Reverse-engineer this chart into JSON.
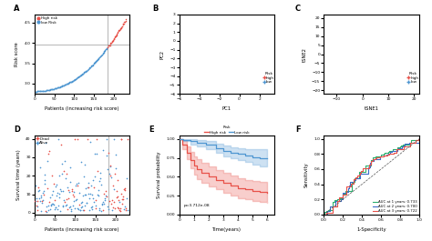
{
  "colors": {
    "high": "#E8524A",
    "low": "#4E96D1",
    "green": "#2AAF6E",
    "blue_roc": "#3B6BC9",
    "red_roc": "#E8524A"
  },
  "panelA": {
    "n_total": 230,
    "cutoff": 183,
    "risk_min": 2.8,
    "risk_max": 4.6,
    "cutoff_y": 3.97,
    "xlim": [
      0,
      240
    ],
    "ylim": [
      2.75,
      4.7
    ],
    "yticks": [
      3.0,
      3.5,
      4.0,
      4.5
    ],
    "xlabel": "Patients (increasing risk score)",
    "ylabel": "Risk score",
    "high_label": "High risk",
    "low_label": "low Risk"
  },
  "panelB": {
    "xlabel": "PC1",
    "ylabel": "PC2",
    "xlim": [
      -6,
      3.5
    ],
    "ylim": [
      -6,
      3
    ],
    "high_label": "high",
    "low_label": "low"
  },
  "panelC": {
    "xlabel": "tSNE1",
    "ylabel": "tSNE2",
    "xlim": [
      -15,
      22
    ],
    "ylim": [
      -22,
      22
    ],
    "high_label": "high",
    "low_label": "low"
  },
  "panelD": {
    "n_total": 230,
    "cutoff": 183,
    "surv_max": 40,
    "xlabel": "Patients (increasing risk score)",
    "ylabel": "Survival time (years)",
    "dead_label": "Dead",
    "alive_label": "Alive"
  },
  "panelE": {
    "xlabel": "Time(years)",
    "ylabel": "Survival probability",
    "xlim": [
      0,
      6.5
    ],
    "ylim": [
      0.0,
      1.05
    ],
    "pvalue": "p=3.712e-08",
    "high_label": "High risk",
    "low_label": "Low risk",
    "t_high": [
      0,
      0.2,
      0.5,
      0.8,
      1.0,
      1.2,
      1.5,
      2.0,
      2.5,
      3.0,
      3.5,
      4.0,
      4.5,
      5.0,
      5.5,
      6.0
    ],
    "s_high": [
      1.0,
      0.93,
      0.82,
      0.72,
      0.65,
      0.6,
      0.55,
      0.5,
      0.46,
      0.42,
      0.38,
      0.35,
      0.33,
      0.31,
      0.3,
      0.29
    ],
    "s_high_upper": [
      1.0,
      0.98,
      0.9,
      0.83,
      0.77,
      0.73,
      0.68,
      0.63,
      0.59,
      0.55,
      0.51,
      0.48,
      0.46,
      0.44,
      0.43,
      0.42
    ],
    "s_high_lower": [
      1.0,
      0.87,
      0.73,
      0.61,
      0.53,
      0.47,
      0.42,
      0.37,
      0.33,
      0.29,
      0.25,
      0.22,
      0.2,
      0.18,
      0.17,
      0.16
    ],
    "t_low": [
      0,
      0.3,
      0.8,
      1.2,
      1.8,
      2.5,
      3.0,
      3.5,
      4.0,
      4.5,
      5.0,
      5.5,
      6.0
    ],
    "s_low": [
      1.0,
      0.99,
      0.97,
      0.95,
      0.92,
      0.88,
      0.84,
      0.82,
      0.8,
      0.78,
      0.76,
      0.75,
      0.74
    ],
    "s_low_upper": [
      1.0,
      1.0,
      1.0,
      0.99,
      0.97,
      0.94,
      0.91,
      0.89,
      0.88,
      0.87,
      0.86,
      0.86,
      0.85
    ],
    "s_low_lower": [
      1.0,
      0.97,
      0.93,
      0.9,
      0.86,
      0.82,
      0.77,
      0.75,
      0.72,
      0.69,
      0.66,
      0.64,
      0.63
    ]
  },
  "panelF": {
    "xlabel": "1-Specificity",
    "ylabel": "Sensitivity",
    "xlim": [
      0,
      1
    ],
    "ylim": [
      0,
      1.05
    ],
    "auc1": "AUC at 1 years: 0.733",
    "auc2": "AUC at 2 years: 0.700",
    "auc3": "AUC at 3 years: 0.722"
  }
}
